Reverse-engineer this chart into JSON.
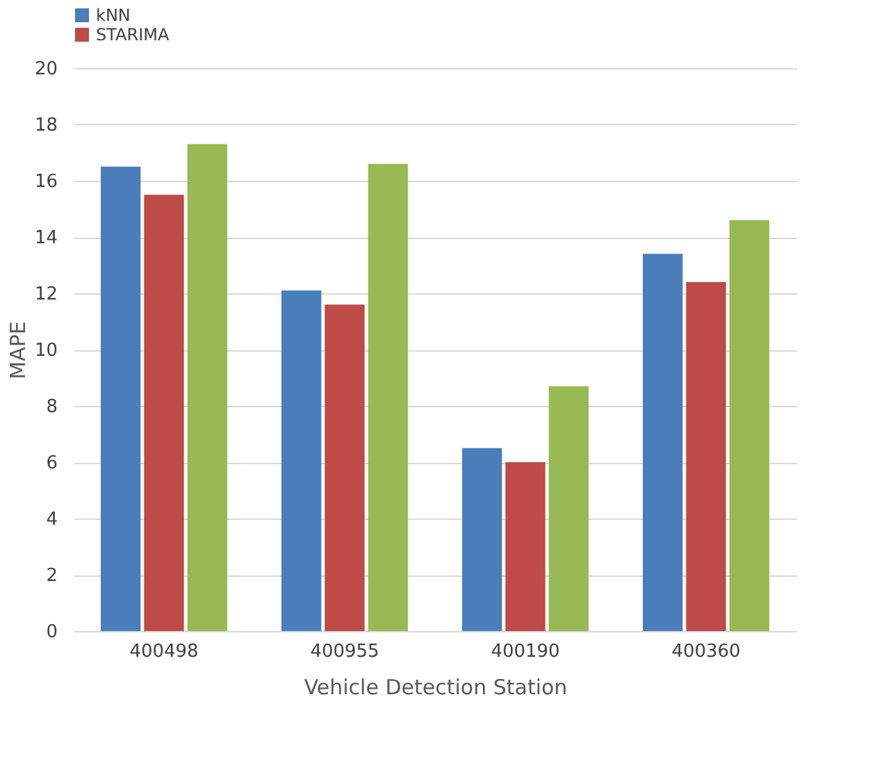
{
  "chart_data": {
    "type": "bar",
    "xlabel": "Vehicle Detection Station",
    "ylabel": "MAPE",
    "categories": [
      "400498",
      "400955",
      "400190",
      "400360"
    ],
    "series": [
      {
        "name": "kNN",
        "color": "#4a7ebb",
        "values": [
          16.5,
          12.1,
          6.5,
          13.4
        ]
      },
      {
        "name": "STARIMA",
        "color": "#be4b48",
        "values": [
          15.5,
          11.6,
          6.0,
          12.4
        ]
      },
      {
        "color": "#98b954",
        "values": [
          17.3,
          16.6,
          8.7,
          14.6
        ]
      }
    ],
    "ylim": [
      0,
      20
    ],
    "yticks": [
      0,
      2,
      4,
      6,
      8,
      10,
      12,
      14,
      16,
      18,
      20
    ],
    "grid": "y",
    "legend": "top"
  }
}
